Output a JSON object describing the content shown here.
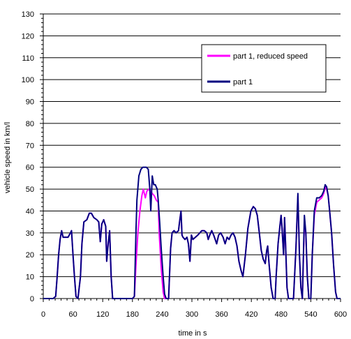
{
  "chart_data": {
    "type": "line",
    "xlabel": "time in s",
    "ylabel": "vehicle speed in km/l",
    "xlim": [
      0,
      600
    ],
    "ylim": [
      0,
      130
    ],
    "x_ticks": [
      0,
      60,
      120,
      180,
      240,
      300,
      360,
      420,
      480,
      540,
      600
    ],
    "y_ticks": [
      0,
      10,
      20,
      30,
      40,
      50,
      60,
      70,
      80,
      90,
      100,
      110,
      120,
      130
    ],
    "grid": "horizontal",
    "legend_position": "top-right",
    "series": [
      {
        "name": "part 1, reduced speed",
        "color": "#ff00ff",
        "points": [
          [
            0,
            0
          ],
          [
            10,
            0
          ],
          [
            20,
            0
          ],
          [
            25,
            1
          ],
          [
            28,
            10
          ],
          [
            31,
            20
          ],
          [
            34,
            27
          ],
          [
            37,
            31
          ],
          [
            40,
            28
          ],
          [
            45,
            28
          ],
          [
            50,
            28
          ],
          [
            55,
            30
          ],
          [
            57,
            31
          ],
          [
            60,
            20
          ],
          [
            63,
            10
          ],
          [
            66,
            1
          ],
          [
            70,
            0
          ],
          [
            75,
            10
          ],
          [
            78,
            25
          ],
          [
            82,
            35
          ],
          [
            88,
            36
          ],
          [
            93,
            39
          ],
          [
            97,
            39
          ],
          [
            102,
            37
          ],
          [
            108,
            36
          ],
          [
            112,
            35
          ],
          [
            115,
            26
          ],
          [
            118,
            34
          ],
          [
            122,
            36
          ],
          [
            126,
            33
          ],
          [
            128,
            17
          ],
          [
            131,
            25
          ],
          [
            134,
            31
          ],
          [
            137,
            10
          ],
          [
            140,
            0
          ],
          [
            150,
            0
          ],
          [
            160,
            0
          ],
          [
            170,
            0
          ],
          [
            180,
            0
          ],
          [
            184,
            1
          ],
          [
            187,
            15
          ],
          [
            191,
            30
          ],
          [
            195,
            40
          ],
          [
            199,
            47
          ],
          [
            202,
            50
          ],
          [
            206,
            46
          ],
          [
            209,
            49
          ],
          [
            213,
            50
          ],
          [
            217,
            49
          ],
          [
            220,
            48
          ],
          [
            224,
            47
          ],
          [
            228,
            45
          ],
          [
            232,
            44
          ],
          [
            234,
            30
          ],
          [
            238,
            14
          ],
          [
            242,
            3
          ],
          [
            245,
            0
          ],
          [
            250,
            0
          ],
          [
            253,
            0
          ],
          [
            257,
            23
          ],
          [
            260,
            30
          ],
          [
            264,
            31
          ],
          [
            268,
            30
          ],
          [
            273,
            31
          ],
          [
            275,
            35
          ],
          [
            278,
            40
          ],
          [
            280,
            29
          ],
          [
            282,
            28
          ],
          [
            286,
            27
          ],
          [
            290,
            28
          ],
          [
            293,
            25
          ],
          [
            296,
            17
          ],
          [
            299,
            29
          ],
          [
            302,
            27
          ],
          [
            307,
            28
          ],
          [
            312,
            29
          ],
          [
            316,
            30
          ],
          [
            320,
            31
          ],
          [
            325,
            31
          ],
          [
            330,
            30
          ],
          [
            333,
            27
          ],
          [
            336,
            29
          ],
          [
            340,
            31
          ],
          [
            344,
            29
          ],
          [
            347,
            27
          ],
          [
            350,
            25
          ],
          [
            354,
            29
          ],
          [
            358,
            30
          ],
          [
            363,
            28
          ],
          [
            367,
            25
          ],
          [
            371,
            28
          ],
          [
            375,
            27
          ],
          [
            379,
            29
          ],
          [
            383,
            30
          ],
          [
            387,
            28
          ],
          [
            391,
            24
          ],
          [
            395,
            17
          ],
          [
            399,
            13
          ],
          [
            403,
            10
          ],
          [
            408,
            20
          ],
          [
            413,
            32
          ],
          [
            419,
            40
          ],
          [
            424,
            42
          ],
          [
            428,
            41
          ],
          [
            432,
            38
          ],
          [
            436,
            30
          ],
          [
            440,
            22
          ],
          [
            444,
            18
          ],
          [
            448,
            16
          ],
          [
            451,
            22
          ],
          [
            453,
            24
          ],
          [
            456,
            15
          ],
          [
            460,
            5
          ],
          [
            464,
            0
          ],
          [
            468,
            0
          ],
          [
            470,
            10
          ],
          [
            474,
            25
          ],
          [
            478,
            34
          ],
          [
            480,
            38
          ],
          [
            482,
            32
          ],
          [
            485,
            20
          ],
          [
            487,
            37
          ],
          [
            489,
            25
          ],
          [
            492,
            5
          ],
          [
            495,
            0
          ],
          [
            500,
            0
          ],
          [
            505,
            0
          ],
          [
            510,
            23
          ],
          [
            514,
            47
          ],
          [
            517,
            20
          ],
          [
            520,
            5
          ],
          [
            523,
            0
          ],
          [
            527,
            35
          ],
          [
            530,
            30
          ],
          [
            533,
            10
          ],
          [
            536,
            0
          ],
          [
            540,
            0
          ],
          [
            543,
            20
          ],
          [
            547,
            38
          ],
          [
            552,
            44
          ],
          [
            557,
            45
          ],
          [
            562,
            46
          ],
          [
            566,
            48
          ],
          [
            569,
            51
          ],
          [
            572,
            50
          ],
          [
            575,
            47
          ],
          [
            578,
            40
          ],
          [
            582,
            30
          ],
          [
            586,
            15
          ],
          [
            590,
            3
          ],
          [
            593,
            0
          ],
          [
            600,
            0
          ]
        ]
      },
      {
        "name": "part 1",
        "color": "#000080",
        "points": [
          [
            0,
            0
          ],
          [
            10,
            0
          ],
          [
            20,
            0
          ],
          [
            25,
            1
          ],
          [
            28,
            10
          ],
          [
            31,
            20
          ],
          [
            34,
            27
          ],
          [
            37,
            31
          ],
          [
            40,
            28
          ],
          [
            45,
            28
          ],
          [
            50,
            28
          ],
          [
            55,
            30
          ],
          [
            57,
            31
          ],
          [
            60,
            20
          ],
          [
            63,
            10
          ],
          [
            66,
            1
          ],
          [
            70,
            0
          ],
          [
            75,
            10
          ],
          [
            78,
            25
          ],
          [
            82,
            35
          ],
          [
            88,
            36
          ],
          [
            93,
            39
          ],
          [
            97,
            39
          ],
          [
            102,
            37
          ],
          [
            108,
            36
          ],
          [
            112,
            35
          ],
          [
            115,
            26
          ],
          [
            118,
            34
          ],
          [
            122,
            36
          ],
          [
            126,
            33
          ],
          [
            128,
            17
          ],
          [
            131,
            25
          ],
          [
            134,
            31
          ],
          [
            137,
            10
          ],
          [
            140,
            0
          ],
          [
            150,
            0
          ],
          [
            160,
            0
          ],
          [
            170,
            0
          ],
          [
            180,
            0
          ],
          [
            184,
            1
          ],
          [
            187,
            30
          ],
          [
            189,
            45
          ],
          [
            193,
            56
          ],
          [
            197,
            59
          ],
          [
            201,
            60
          ],
          [
            205,
            60
          ],
          [
            208,
            60
          ],
          [
            212,
            59
          ],
          [
            215,
            50
          ],
          [
            217,
            40
          ],
          [
            220,
            56
          ],
          [
            223,
            52
          ],
          [
            226,
            52
          ],
          [
            230,
            50
          ],
          [
            232,
            45
          ],
          [
            235,
            35
          ],
          [
            238,
            23
          ],
          [
            242,
            10
          ],
          [
            245,
            2
          ],
          [
            248,
            0
          ],
          [
            253,
            0
          ],
          [
            257,
            23
          ],
          [
            260,
            30
          ],
          [
            264,
            31
          ],
          [
            268,
            30
          ],
          [
            273,
            31
          ],
          [
            275,
            35
          ],
          [
            278,
            40
          ],
          [
            280,
            29
          ],
          [
            282,
            28
          ],
          [
            286,
            27
          ],
          [
            290,
            28
          ],
          [
            293,
            25
          ],
          [
            296,
            17
          ],
          [
            299,
            29
          ],
          [
            302,
            27
          ],
          [
            307,
            28
          ],
          [
            312,
            29
          ],
          [
            316,
            30
          ],
          [
            320,
            31
          ],
          [
            325,
            31
          ],
          [
            330,
            30
          ],
          [
            333,
            27
          ],
          [
            336,
            29
          ],
          [
            340,
            31
          ],
          [
            344,
            29
          ],
          [
            347,
            27
          ],
          [
            350,
            25
          ],
          [
            354,
            29
          ],
          [
            358,
            30
          ],
          [
            363,
            28
          ],
          [
            367,
            25
          ],
          [
            371,
            28
          ],
          [
            375,
            27
          ],
          [
            379,
            29
          ],
          [
            383,
            30
          ],
          [
            387,
            28
          ],
          [
            391,
            24
          ],
          [
            395,
            17
          ],
          [
            399,
            13
          ],
          [
            403,
            10
          ],
          [
            408,
            20
          ],
          [
            413,
            32
          ],
          [
            419,
            40
          ],
          [
            424,
            42
          ],
          [
            428,
            41
          ],
          [
            432,
            38
          ],
          [
            436,
            30
          ],
          [
            440,
            22
          ],
          [
            444,
            18
          ],
          [
            448,
            16
          ],
          [
            451,
            22
          ],
          [
            453,
            24
          ],
          [
            456,
            15
          ],
          [
            460,
            5
          ],
          [
            464,
            0
          ],
          [
            468,
            0
          ],
          [
            470,
            10
          ],
          [
            474,
            25
          ],
          [
            478,
            34
          ],
          [
            480,
            38
          ],
          [
            482,
            32
          ],
          [
            485,
            20
          ],
          [
            487,
            37
          ],
          [
            489,
            25
          ],
          [
            492,
            5
          ],
          [
            495,
            0
          ],
          [
            500,
            0
          ],
          [
            505,
            0
          ],
          [
            510,
            23
          ],
          [
            514,
            48
          ],
          [
            517,
            20
          ],
          [
            520,
            5
          ],
          [
            523,
            0
          ],
          [
            527,
            38
          ],
          [
            530,
            30
          ],
          [
            533,
            10
          ],
          [
            536,
            0
          ],
          [
            540,
            0
          ],
          [
            543,
            20
          ],
          [
            547,
            40
          ],
          [
            552,
            46
          ],
          [
            557,
            46
          ],
          [
            562,
            47
          ],
          [
            566,
            49
          ],
          [
            569,
            52
          ],
          [
            572,
            51
          ],
          [
            575,
            47
          ],
          [
            578,
            40
          ],
          [
            582,
            30
          ],
          [
            586,
            15
          ],
          [
            590,
            3
          ],
          [
            593,
            0
          ],
          [
            600,
            0
          ]
        ]
      }
    ]
  }
}
